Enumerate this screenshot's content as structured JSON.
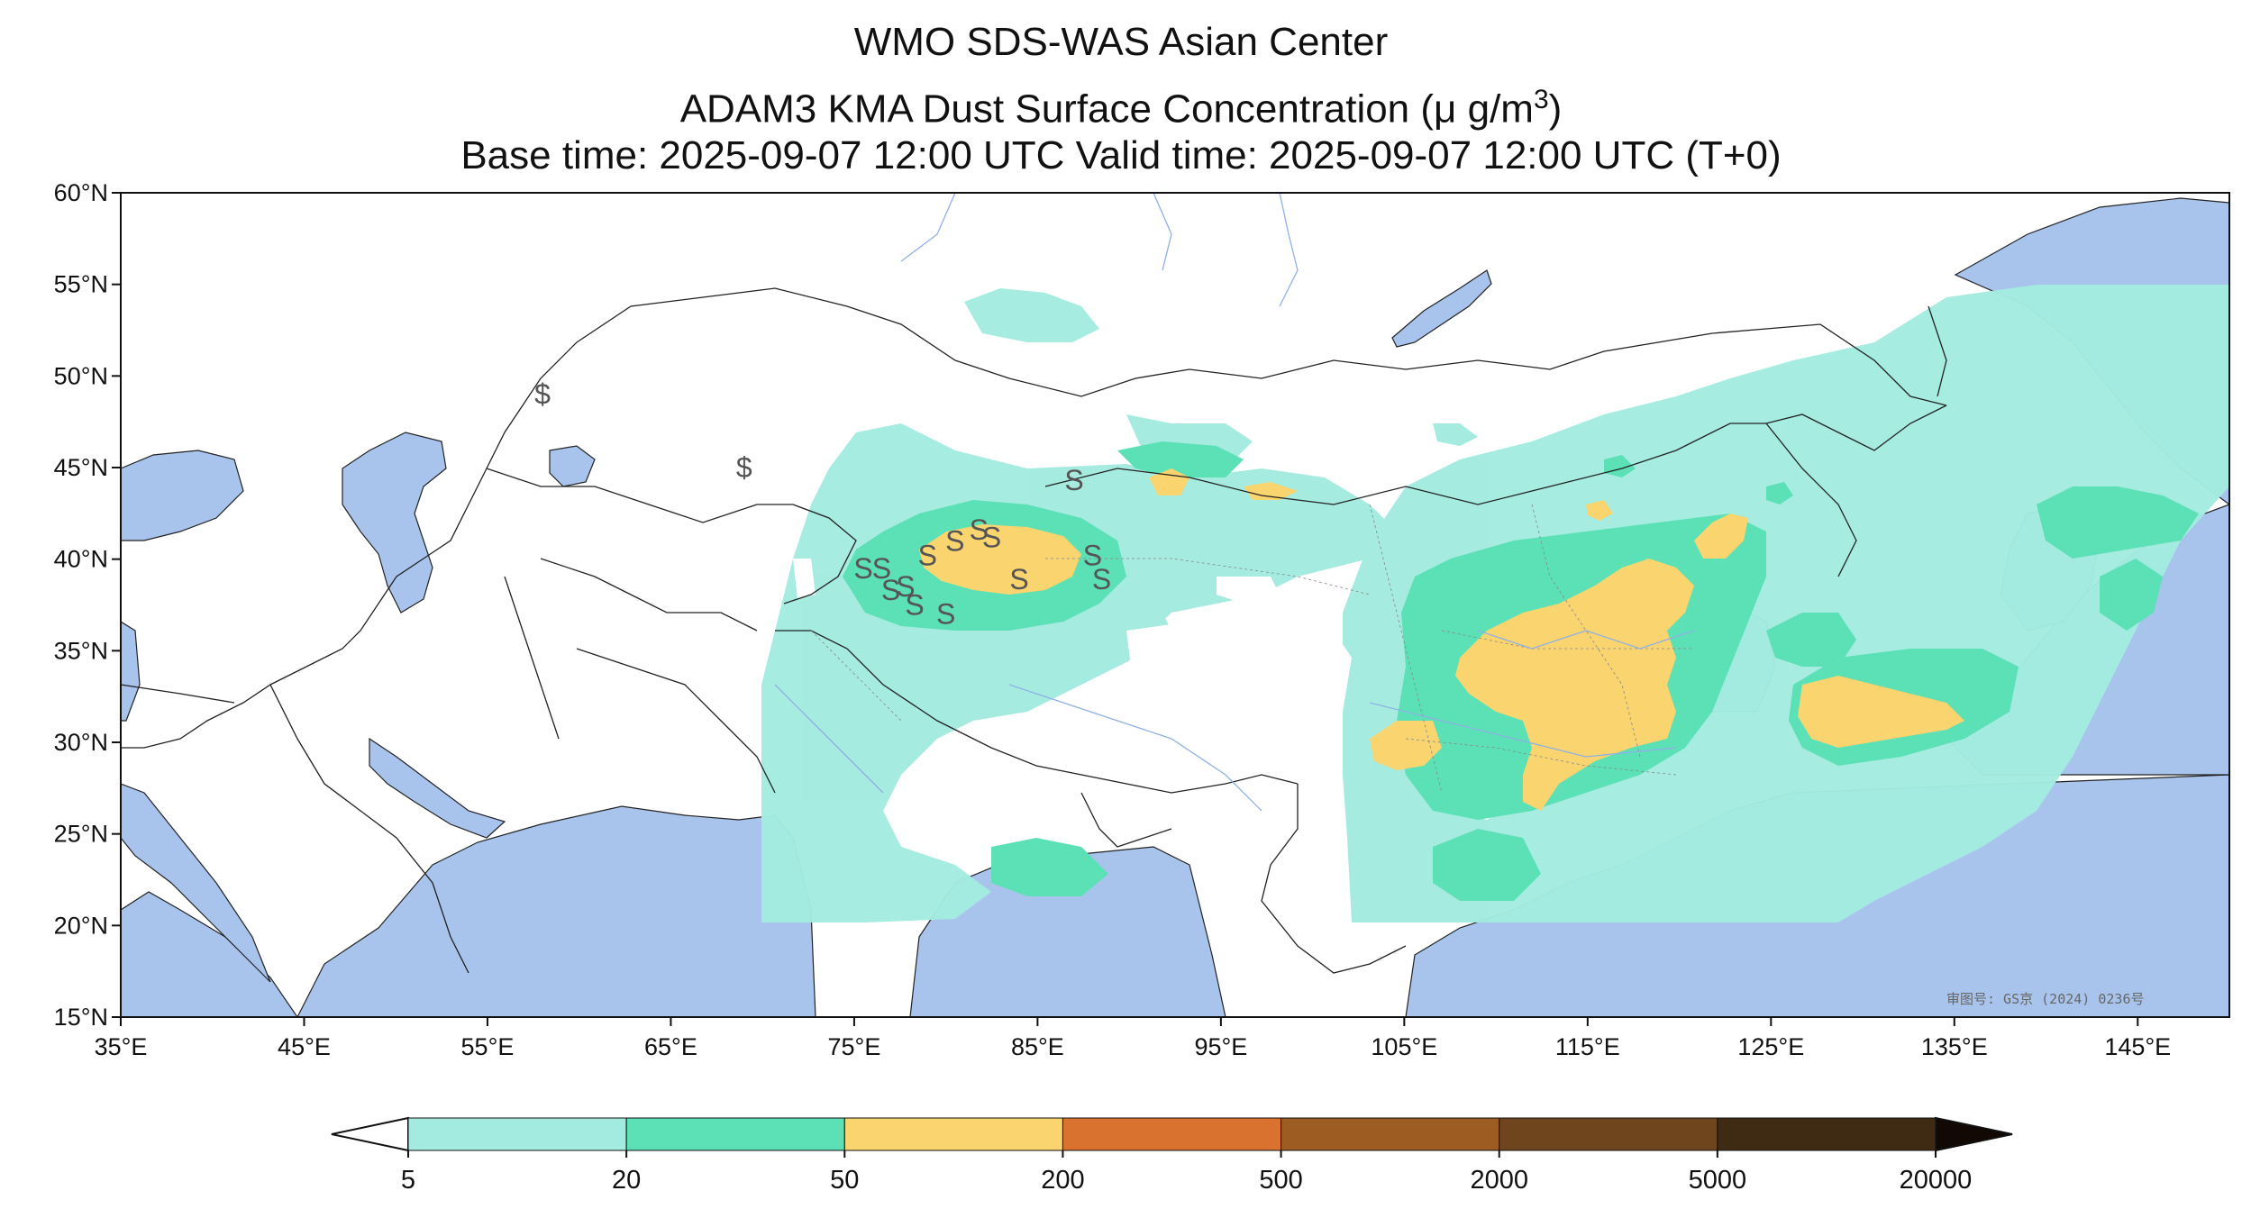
{
  "title": {
    "line1": "WMO SDS-WAS Asian Center",
    "line2_prefix": "ADAM3 KMA Dust Surface Concentration (",
    "line2_unit": "μ g/m",
    "line2_sup": "3",
    "line2_suffix": ")",
    "line3": "Base time: 2025-09-07 12:00 UTC Valid time: 2025-09-07 12:00 UTC (T+0)"
  },
  "map": {
    "lon_range": [
      35,
      150
    ],
    "lat_range": [
      15,
      60
    ],
    "x_ticks": [
      "35°E",
      "45°E",
      "55°E",
      "65°E",
      "75°E",
      "85°E",
      "95°E",
      "105°E",
      "115°E",
      "125°E",
      "135°E",
      "145°E"
    ],
    "y_ticks": [
      "60°N",
      "55°N",
      "50°N",
      "45°N",
      "40°N",
      "35°N",
      "30°N",
      "25°N",
      "20°N",
      "15°N"
    ],
    "approval_note": "审图号: GS京 (2024) 0236号",
    "station_markers": [
      {
        "symbol": "$",
        "lon": 58,
        "lat": 49
      },
      {
        "symbol": "$",
        "lon": 69,
        "lat": 45
      },
      {
        "symbol": "S",
        "lon": 87,
        "lat": 44.3
      },
      {
        "symbol": "S",
        "lon": 75.5,
        "lat": 39.5
      },
      {
        "symbol": "S",
        "lon": 76.5,
        "lat": 39.5
      },
      {
        "symbol": "S",
        "lon": 77,
        "lat": 38.3
      },
      {
        "symbol": "S",
        "lon": 77.8,
        "lat": 38.5
      },
      {
        "symbol": "S",
        "lon": 78.3,
        "lat": 37.5
      },
      {
        "symbol": "S",
        "lon": 79,
        "lat": 40.2
      },
      {
        "symbol": "S",
        "lon": 80,
        "lat": 37
      },
      {
        "symbol": "S",
        "lon": 80.5,
        "lat": 41
      },
      {
        "symbol": "S",
        "lon": 81.8,
        "lat": 41.6
      },
      {
        "symbol": "S",
        "lon": 82.5,
        "lat": 41.2
      },
      {
        "symbol": "S",
        "lon": 84,
        "lat": 38.9
      },
      {
        "symbol": "S",
        "lon": 88,
        "lat": 40.2
      },
      {
        "symbol": "S",
        "lon": 88.5,
        "lat": 38.9
      }
    ]
  },
  "legend": {
    "levels": [
      "5",
      "20",
      "50",
      "200",
      "500",
      "2000",
      "5000",
      "20000"
    ],
    "colors": [
      "#a3ebe0",
      "#5ce0b5",
      "#fad46e",
      "#d9722f",
      "#9c5c22",
      "#6e451d",
      "#3f2a14"
    ]
  },
  "colors": {
    "water": "#a9c4ec",
    "land": "#ffffff",
    "level1": "#a3ebe0",
    "level2": "#5ce0b5",
    "level3": "#fad46e"
  }
}
